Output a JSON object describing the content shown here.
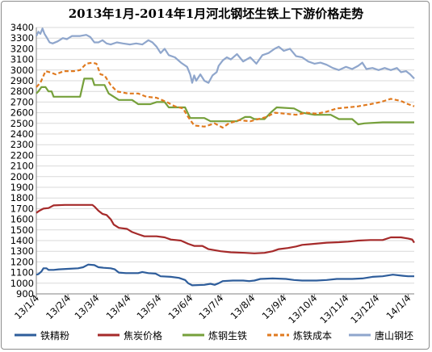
{
  "chart_data": {
    "type": "line",
    "title": "2013年1月-2014年1月河北钢坯生铁上下游价格走势",
    "ylim": [
      900,
      3400
    ],
    "y_ticks": [
      900,
      1000,
      1100,
      1200,
      1300,
      1400,
      1500,
      1600,
      1700,
      1800,
      1900,
      2000,
      2100,
      2200,
      2300,
      2400,
      2500,
      2600,
      2700,
      2800,
      2900,
      3000,
      3100,
      3200,
      3300,
      3400
    ],
    "x_range": [
      "2013-01-04",
      "2014-01-10"
    ],
    "x_tick_labels": [
      "13/1/4",
      "13/2/4",
      "13/3/4",
      "13/4/4",
      "13/5/4",
      "13/6/4",
      "13/7/4",
      "13/8/4",
      "13/9/4",
      "13/10/4",
      "13/11/4",
      "13/12/4",
      "14/1/4"
    ],
    "grid": "horizontal",
    "legend_position": "bottom",
    "series": [
      {
        "name": "铁精粉",
        "color": "#2e5d9b",
        "dash": "solid",
        "points": [
          [
            "2013-01-04",
            1080
          ],
          [
            "2013-01-06",
            1085
          ],
          [
            "2013-01-09",
            1110
          ],
          [
            "2013-01-11",
            1140
          ],
          [
            "2013-01-14",
            1140
          ],
          [
            "2013-01-16",
            1125
          ],
          [
            "2013-01-21",
            1125
          ],
          [
            "2013-01-26",
            1130
          ],
          [
            "2013-02-04",
            1135
          ],
          [
            "2013-02-14",
            1140
          ],
          [
            "2013-02-19",
            1150
          ],
          [
            "2013-02-24",
            1175
          ],
          [
            "2013-03-02",
            1170
          ],
          [
            "2013-03-06",
            1150
          ],
          [
            "2013-03-11",
            1145
          ],
          [
            "2013-03-18",
            1140
          ],
          [
            "2013-03-22",
            1130
          ],
          [
            "2013-03-26",
            1100
          ],
          [
            "2013-04-02",
            1095
          ],
          [
            "2013-04-14",
            1095
          ],
          [
            "2013-04-18",
            1105
          ],
          [
            "2013-04-24",
            1095
          ],
          [
            "2013-05-01",
            1090
          ],
          [
            "2013-05-06",
            1065
          ],
          [
            "2013-05-16",
            1060
          ],
          [
            "2013-05-24",
            1050
          ],
          [
            "2013-05-30",
            1030
          ],
          [
            "2013-06-02",
            1000
          ],
          [
            "2013-06-06",
            980
          ],
          [
            "2013-06-18",
            985
          ],
          [
            "2013-06-24",
            995
          ],
          [
            "2013-06-28",
            985
          ],
          [
            "2013-07-02",
            1000
          ],
          [
            "2013-07-06",
            1020
          ],
          [
            "2013-07-16",
            1025
          ],
          [
            "2013-07-26",
            1025
          ],
          [
            "2013-08-01",
            1020
          ],
          [
            "2013-08-06",
            1025
          ],
          [
            "2013-08-12",
            1040
          ],
          [
            "2013-08-24",
            1045
          ],
          [
            "2013-09-06",
            1040
          ],
          [
            "2013-09-14",
            1030
          ],
          [
            "2013-09-22",
            1025
          ],
          [
            "2013-10-06",
            1025
          ],
          [
            "2013-10-16",
            1030
          ],
          [
            "2013-10-26",
            1040
          ],
          [
            "2013-11-10",
            1040
          ],
          [
            "2013-11-20",
            1045
          ],
          [
            "2013-11-30",
            1060
          ],
          [
            "2013-12-10",
            1065
          ],
          [
            "2013-12-20",
            1080
          ],
          [
            "2013-12-30",
            1070
          ],
          [
            "2014-01-04",
            1065
          ],
          [
            "2014-01-10",
            1065
          ]
        ]
      },
      {
        "name": "焦炭价格",
        "color": "#a52a2a",
        "dash": "solid",
        "points": [
          [
            "2013-01-04",
            1660
          ],
          [
            "2013-01-07",
            1680
          ],
          [
            "2013-01-11",
            1700
          ],
          [
            "2013-01-16",
            1705
          ],
          [
            "2013-01-21",
            1730
          ],
          [
            "2013-02-01",
            1735
          ],
          [
            "2013-02-14",
            1735
          ],
          [
            "2013-02-28",
            1735
          ],
          [
            "2013-03-02",
            1720
          ],
          [
            "2013-03-06",
            1680
          ],
          [
            "2013-03-10",
            1650
          ],
          [
            "2013-03-14",
            1640
          ],
          [
            "2013-03-18",
            1600
          ],
          [
            "2013-03-21",
            1550
          ],
          [
            "2013-03-26",
            1520
          ],
          [
            "2013-04-03",
            1510
          ],
          [
            "2013-04-08",
            1480
          ],
          [
            "2013-04-14",
            1460
          ],
          [
            "2013-04-20",
            1440
          ],
          [
            "2013-05-02",
            1440
          ],
          [
            "2013-05-10",
            1430
          ],
          [
            "2013-05-16",
            1410
          ],
          [
            "2013-05-26",
            1400
          ],
          [
            "2013-06-02",
            1370
          ],
          [
            "2013-06-08",
            1350
          ],
          [
            "2013-06-16",
            1350
          ],
          [
            "2013-06-22",
            1320
          ],
          [
            "2013-07-04",
            1300
          ],
          [
            "2013-07-14",
            1290
          ],
          [
            "2013-07-28",
            1285
          ],
          [
            "2013-08-06",
            1280
          ],
          [
            "2013-08-16",
            1285
          ],
          [
            "2013-08-24",
            1300
          ],
          [
            "2013-08-30",
            1320
          ],
          [
            "2013-09-08",
            1330
          ],
          [
            "2013-09-16",
            1345
          ],
          [
            "2013-09-22",
            1360
          ],
          [
            "2013-10-04",
            1370
          ],
          [
            "2013-10-16",
            1380
          ],
          [
            "2013-10-28",
            1385
          ],
          [
            "2013-11-06",
            1390
          ],
          [
            "2013-11-16",
            1400
          ],
          [
            "2013-11-28",
            1405
          ],
          [
            "2013-12-10",
            1405
          ],
          [
            "2013-12-18",
            1430
          ],
          [
            "2013-12-28",
            1430
          ],
          [
            "2014-01-04",
            1420
          ],
          [
            "2014-01-08",
            1410
          ],
          [
            "2014-01-10",
            1380
          ]
        ]
      },
      {
        "name": "炼钢生铁",
        "color": "#76a03b",
        "dash": "solid",
        "points": [
          [
            "2013-01-04",
            2780
          ],
          [
            "2013-01-06",
            2800
          ],
          [
            "2013-01-09",
            2840
          ],
          [
            "2013-01-13",
            2840
          ],
          [
            "2013-01-16",
            2800
          ],
          [
            "2013-01-19",
            2800
          ],
          [
            "2013-01-21",
            2750
          ],
          [
            "2013-02-16",
            2750
          ],
          [
            "2013-02-20",
            2920
          ],
          [
            "2013-02-28",
            2920
          ],
          [
            "2013-03-02",
            2860
          ],
          [
            "2013-03-12",
            2860
          ],
          [
            "2013-03-16",
            2780
          ],
          [
            "2013-03-26",
            2720
          ],
          [
            "2013-04-08",
            2720
          ],
          [
            "2013-04-14",
            2680
          ],
          [
            "2013-04-26",
            2680
          ],
          [
            "2013-05-02",
            2700
          ],
          [
            "2013-05-10",
            2700
          ],
          [
            "2013-05-14",
            2650
          ],
          [
            "2013-05-30",
            2650
          ],
          [
            "2013-06-04",
            2550
          ],
          [
            "2013-06-18",
            2550
          ],
          [
            "2013-06-24",
            2520
          ],
          [
            "2013-07-20",
            2520
          ],
          [
            "2013-07-28",
            2560
          ],
          [
            "2013-08-02",
            2560
          ],
          [
            "2013-08-06",
            2540
          ],
          [
            "2013-08-16",
            2540
          ],
          [
            "2013-08-22",
            2600
          ],
          [
            "2013-08-28",
            2650
          ],
          [
            "2013-09-14",
            2640
          ],
          [
            "2013-09-22",
            2600
          ],
          [
            "2013-10-04",
            2580
          ],
          [
            "2013-10-20",
            2580
          ],
          [
            "2013-10-28",
            2540
          ],
          [
            "2013-11-10",
            2540
          ],
          [
            "2013-11-16",
            2490
          ],
          [
            "2013-11-22",
            2500
          ],
          [
            "2013-12-10",
            2510
          ],
          [
            "2014-01-10",
            2510
          ]
        ]
      },
      {
        "name": "炼铁成本",
        "color": "#e07a1f",
        "dash": "dashed",
        "points": [
          [
            "2013-01-04",
            2840
          ],
          [
            "2013-01-08",
            2880
          ],
          [
            "2013-01-13",
            2990
          ],
          [
            "2013-01-17",
            2980
          ],
          [
            "2013-01-23",
            2960
          ],
          [
            "2013-01-31",
            2990
          ],
          [
            "2013-02-10",
            2990
          ],
          [
            "2013-02-16",
            3000
          ],
          [
            "2013-02-22",
            3060
          ],
          [
            "2013-02-28",
            3070
          ],
          [
            "2013-03-04",
            3060
          ],
          [
            "2013-03-08",
            2960
          ],
          [
            "2013-03-12",
            2950
          ],
          [
            "2013-03-18",
            2860
          ],
          [
            "2013-03-24",
            2800
          ],
          [
            "2013-04-04",
            2780
          ],
          [
            "2013-04-14",
            2780
          ],
          [
            "2013-04-22",
            2750
          ],
          [
            "2013-05-02",
            2740
          ],
          [
            "2013-05-12",
            2700
          ],
          [
            "2013-05-20",
            2660
          ],
          [
            "2013-05-28",
            2640
          ],
          [
            "2013-06-02",
            2560
          ],
          [
            "2013-06-08",
            2480
          ],
          [
            "2013-06-18",
            2470
          ],
          [
            "2013-06-28",
            2500
          ],
          [
            "2013-07-06",
            2460
          ],
          [
            "2013-07-12",
            2500
          ],
          [
            "2013-07-22",
            2530
          ],
          [
            "2013-08-02",
            2520
          ],
          [
            "2013-08-10",
            2540
          ],
          [
            "2013-08-18",
            2560
          ],
          [
            "2013-08-26",
            2600
          ],
          [
            "2013-09-06",
            2590
          ],
          [
            "2013-09-16",
            2580
          ],
          [
            "2013-09-26",
            2600
          ],
          [
            "2013-10-06",
            2590
          ],
          [
            "2013-10-16",
            2610
          ],
          [
            "2013-10-26",
            2640
          ],
          [
            "2013-11-06",
            2650
          ],
          [
            "2013-11-16",
            2660
          ],
          [
            "2013-11-28",
            2680
          ],
          [
            "2013-12-08",
            2700
          ],
          [
            "2013-12-18",
            2730
          ],
          [
            "2013-12-28",
            2710
          ],
          [
            "2014-01-04",
            2680
          ],
          [
            "2014-01-10",
            2660
          ]
        ]
      },
      {
        "name": "唐山钢坯",
        "color": "#8fa6cc",
        "dash": "solid",
        "points": [
          [
            "2013-01-04",
            3320
          ],
          [
            "2013-01-06",
            3360
          ],
          [
            "2013-01-08",
            3340
          ],
          [
            "2013-01-10",
            3390
          ],
          [
            "2013-01-12",
            3340
          ],
          [
            "2013-01-14",
            3310
          ],
          [
            "2013-01-17",
            3260
          ],
          [
            "2013-01-20",
            3250
          ],
          [
            "2013-01-25",
            3270
          ],
          [
            "2013-01-30",
            3300
          ],
          [
            "2013-02-03",
            3290
          ],
          [
            "2013-02-08",
            3320
          ],
          [
            "2013-02-16",
            3320
          ],
          [
            "2013-02-22",
            3330
          ],
          [
            "2013-02-26",
            3310
          ],
          [
            "2013-03-02",
            3260
          ],
          [
            "2013-03-06",
            3260
          ],
          [
            "2013-03-10",
            3280
          ],
          [
            "2013-03-14",
            3250
          ],
          [
            "2013-03-18",
            3240
          ],
          [
            "2013-03-24",
            3260
          ],
          [
            "2013-03-30",
            3250
          ],
          [
            "2013-04-06",
            3240
          ],
          [
            "2013-04-12",
            3250
          ],
          [
            "2013-04-18",
            3240
          ],
          [
            "2013-04-24",
            3280
          ],
          [
            "2013-04-28",
            3260
          ],
          [
            "2013-05-02",
            3220
          ],
          [
            "2013-05-06",
            3160
          ],
          [
            "2013-05-10",
            3200
          ],
          [
            "2013-05-14",
            3140
          ],
          [
            "2013-05-20",
            3120
          ],
          [
            "2013-05-26",
            3070
          ],
          [
            "2013-06-01",
            3030
          ],
          [
            "2013-06-04",
            2960
          ],
          [
            "2013-06-06",
            2880
          ],
          [
            "2013-06-08",
            2950
          ],
          [
            "2013-06-10",
            2900
          ],
          [
            "2013-06-14",
            2960
          ],
          [
            "2013-06-18",
            2900
          ],
          [
            "2013-06-22",
            2880
          ],
          [
            "2013-06-26",
            2950
          ],
          [
            "2013-06-30",
            2980
          ],
          [
            "2013-07-02",
            3040
          ],
          [
            "2013-07-06",
            3090
          ],
          [
            "2013-07-10",
            3120
          ],
          [
            "2013-07-14",
            3100
          ],
          [
            "2013-07-20",
            3150
          ],
          [
            "2013-07-26",
            3080
          ],
          [
            "2013-08-02",
            3120
          ],
          [
            "2013-08-08",
            3060
          ],
          [
            "2013-08-14",
            3140
          ],
          [
            "2013-08-20",
            3160
          ],
          [
            "2013-08-26",
            3200
          ],
          [
            "2013-08-30",
            3220
          ],
          [
            "2013-09-04",
            3180
          ],
          [
            "2013-09-10",
            3200
          ],
          [
            "2013-09-16",
            3130
          ],
          [
            "2013-09-22",
            3120
          ],
          [
            "2013-09-28",
            3080
          ],
          [
            "2013-10-04",
            3060
          ],
          [
            "2013-10-10",
            3070
          ],
          [
            "2013-10-16",
            3050
          ],
          [
            "2013-10-22",
            3020
          ],
          [
            "2013-10-28",
            3000
          ],
          [
            "2013-11-04",
            3030
          ],
          [
            "2013-11-10",
            3010
          ],
          [
            "2013-11-16",
            3040
          ],
          [
            "2013-11-20",
            3070
          ],
          [
            "2013-11-24",
            3010
          ],
          [
            "2013-11-30",
            3020
          ],
          [
            "2013-12-06",
            3000
          ],
          [
            "2013-12-12",
            3020
          ],
          [
            "2013-12-18",
            3000
          ],
          [
            "2013-12-24",
            3020
          ],
          [
            "2013-12-28",
            2980
          ],
          [
            "2014-01-02",
            2990
          ],
          [
            "2014-01-06",
            2960
          ],
          [
            "2014-01-10",
            2920
          ]
        ]
      }
    ]
  }
}
